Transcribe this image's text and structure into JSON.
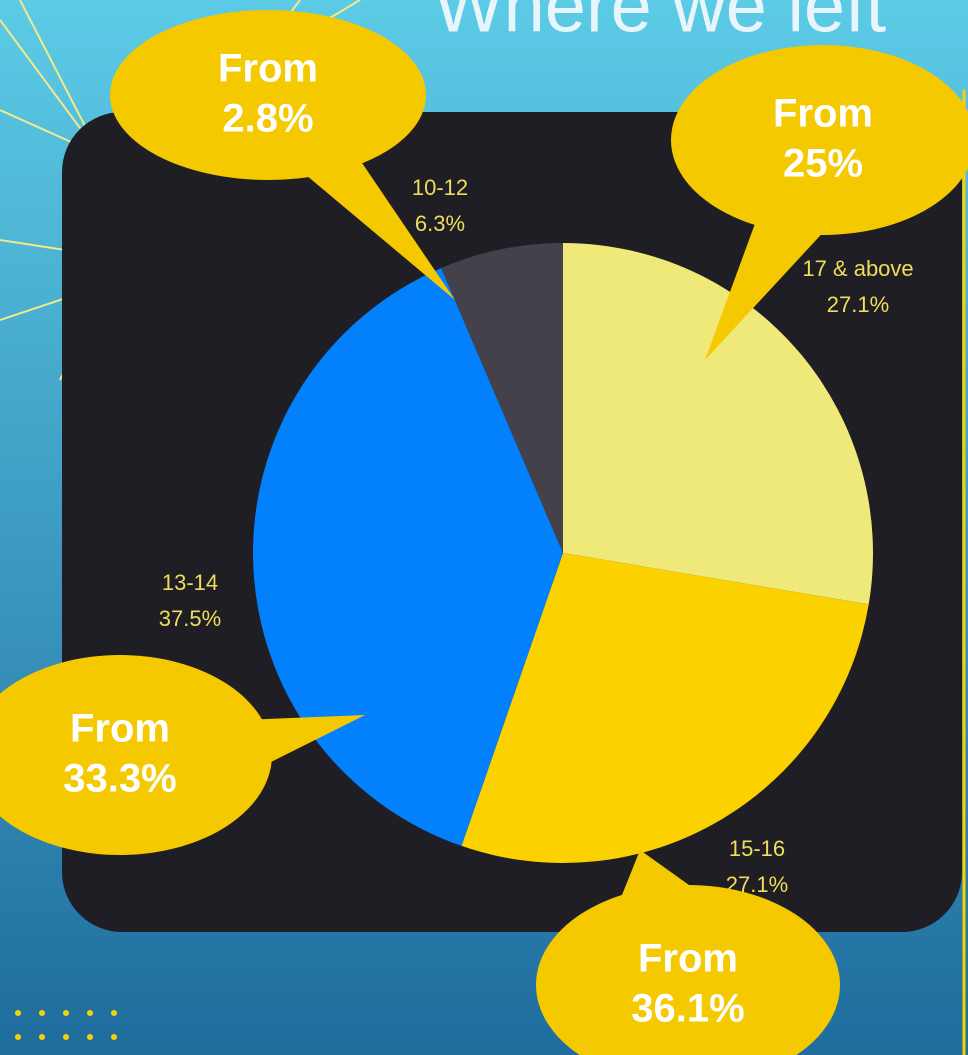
{
  "chart_data": {
    "type": "pie",
    "title": "Where we left",
    "categories": [
      "17 & above",
      "15-16",
      "13-14",
      "10-12"
    ],
    "values": [
      27.1,
      27.1,
      37.5,
      6.3
    ],
    "value_labels": [
      "27.1%",
      "27.1%",
      "37.5%",
      "6.3%"
    ],
    "colors": [
      "#efe97a",
      "#fcd100",
      "#0380fb",
      "#44414b"
    ],
    "annotations": [
      {
        "lines": [
          "From",
          "25%"
        ]
      },
      {
        "lines": [
          "From",
          "36.1%"
        ]
      },
      {
        "lines": [
          "From",
          "33.3%"
        ]
      },
      {
        "lines": [
          "From",
          "2.8%"
        ]
      }
    ]
  }
}
